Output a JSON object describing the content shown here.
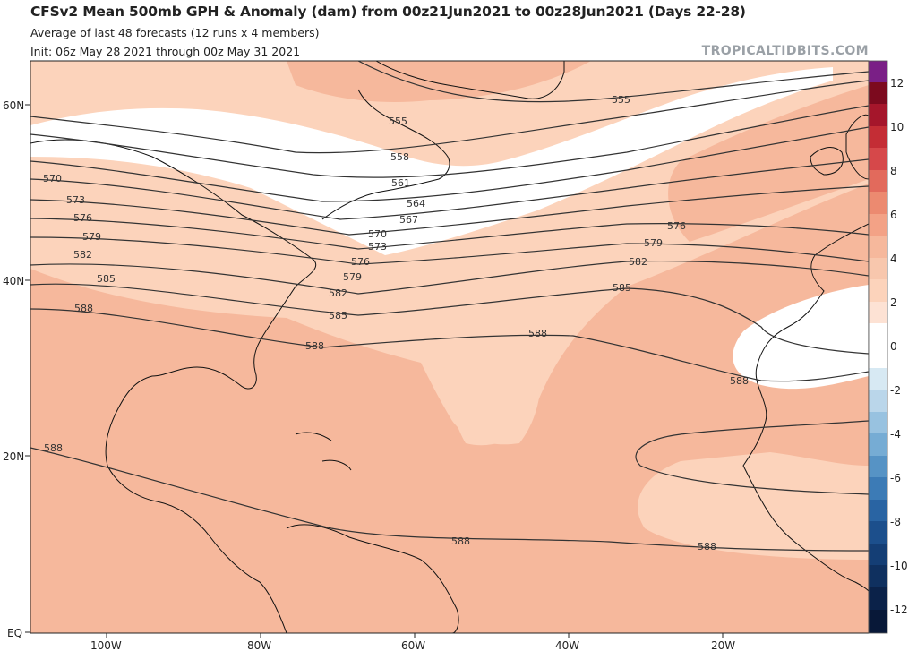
{
  "header": {
    "title": "CFSv2 Mean 500mb GPH & Anomaly (dam) from 00z21Jun2021 to 00z28Jun2021 (Days 22-28)",
    "subtitle1": "Average of last 48 forecasts (12 runs x 4 members)",
    "subtitle2": "Init: 06z May 28 2021 through 00z May 31 2021",
    "brand": "TROPICALTIDBITS.COM"
  },
  "axes": {
    "lat_labels": [
      "60N",
      "40N",
      "20N",
      "EQ"
    ],
    "lon_labels": [
      "100W",
      "80W",
      "60W",
      "40W",
      "20W"
    ]
  },
  "colorbar": {
    "tick_labels": [
      "12",
      "10",
      "8",
      "6",
      "4",
      "2",
      "0",
      "-2",
      "-4",
      "-6",
      "-8",
      "-10",
      "-12"
    ]
  },
  "contours": {
    "labels": [
      "555",
      "555",
      "558",
      "561",
      "564",
      "567",
      "570",
      "570",
      "573",
      "573",
      "576",
      "576",
      "576",
      "579",
      "579",
      "579",
      "582",
      "582",
      "582",
      "585",
      "585",
      "585",
      "588",
      "588",
      "588",
      "588",
      "588",
      "588",
      "588"
    ]
  }
}
